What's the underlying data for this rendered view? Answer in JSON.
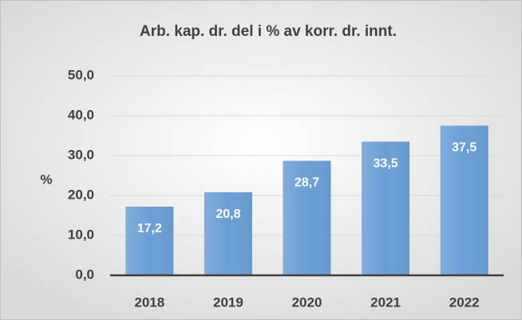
{
  "chart_data": {
    "type": "bar",
    "title": "Arb. kap. dr. del i % av korr. dr. innt.",
    "ylabel": "%",
    "categories": [
      "2018",
      "2019",
      "2020",
      "2021",
      "2022"
    ],
    "values": [
      17.2,
      20.8,
      28.7,
      33.5,
      37.5
    ],
    "value_labels": [
      "17,2",
      "20,8",
      "28,7",
      "33,5",
      "37,5"
    ],
    "color": "#6a9fd6",
    "ylim": [
      0,
      50
    ],
    "yticks": [
      {
        "value": 0,
        "label": "0,0"
      },
      {
        "value": 10,
        "label": "10,0"
      },
      {
        "value": 20,
        "label": "20,0"
      },
      {
        "value": 30,
        "label": "30,0"
      },
      {
        "value": 40,
        "label": "40,0"
      },
      {
        "value": 50,
        "label": "50,0"
      }
    ],
    "grid": true
  }
}
